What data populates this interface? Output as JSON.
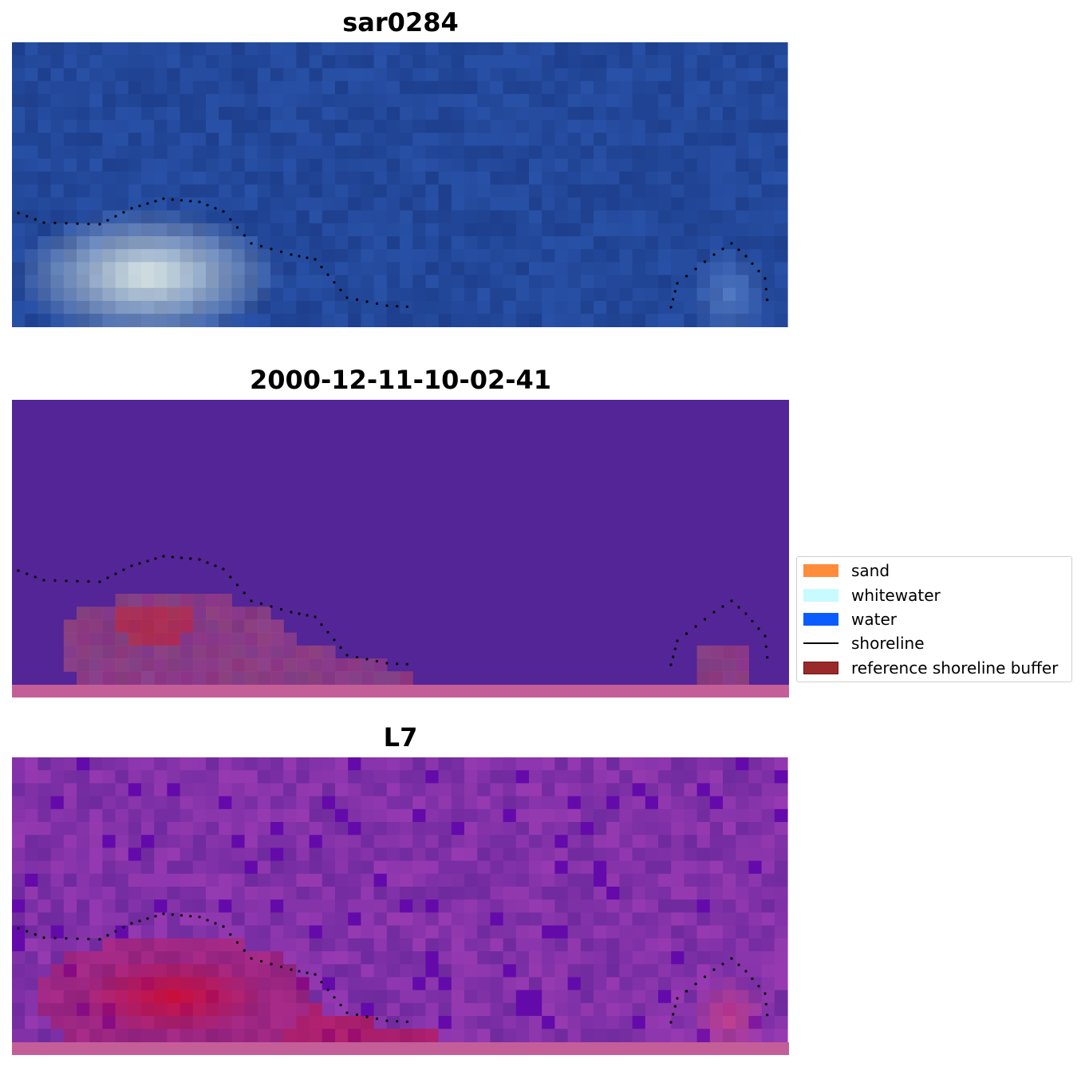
{
  "panels": [
    {
      "title": "sar0284"
    },
    {
      "title": "2000-12-11-10-02-41"
    },
    {
      "title": "L7"
    }
  ],
  "legend": {
    "items": [
      {
        "label": "sand",
        "color": "#ff8c3a",
        "kind": "patch"
      },
      {
        "label": "whitewater",
        "color": "#c8fbff",
        "kind": "patch"
      },
      {
        "label": "water",
        "color": "#0a5cff",
        "kind": "patch"
      },
      {
        "label": "shoreline",
        "color": "#000000",
        "kind": "line"
      },
      {
        "label": "reference shoreline buffer",
        "color": "#9a2a2a",
        "kind": "patch"
      }
    ]
  },
  "colors": {
    "rgb_base": "#23489a",
    "classified_background": "#532596",
    "classified_buffer_strip": "#c45e98",
    "mndwi_base": "#8332a8",
    "shoreline_dots": "#000000"
  }
}
